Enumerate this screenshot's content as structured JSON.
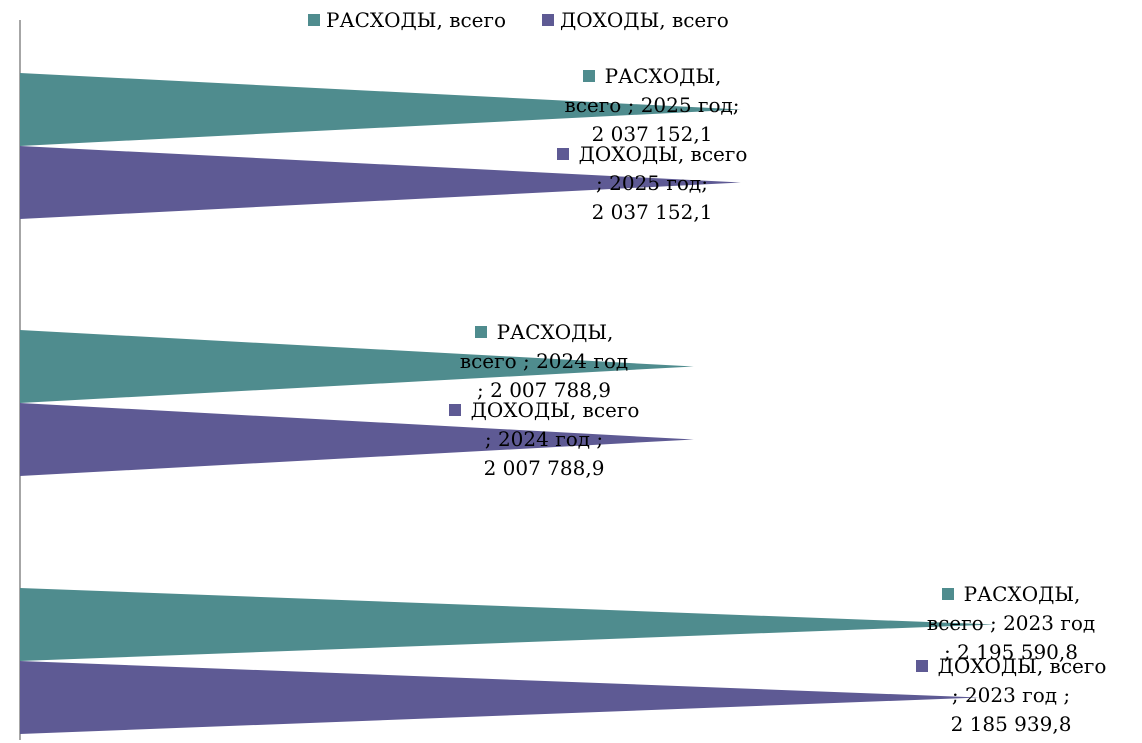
{
  "chart_data": {
    "type": "bar",
    "orientation": "horizontal",
    "bar_shape": "triangle",
    "categories": [
      "2023 год",
      "2024 год",
      "2025 год"
    ],
    "series": [
      {
        "name": "РАСХОДЫ, всего",
        "color": "#4F8C8E",
        "values": [
          2195590.8,
          2007788.9,
          2037152.1
        ]
      },
      {
        "name": "ДОХОДЫ, всего",
        "color": "#5E5A94",
        "values": [
          2185939.8,
          2007788.9,
          2037152.1
        ]
      }
    ],
    "legend": {
      "position": "top",
      "entries": [
        "РАСХОДЫ, всего",
        "ДОХОДЫ, всего"
      ]
    },
    "data_labels": [
      {
        "lines": [
          "РАСХОДЫ,",
          "всего ;  2025 год;",
          "2 037 152,1"
        ],
        "series": 0,
        "category": 2
      },
      {
        "lines": [
          "ДОХОДЫ, всего",
          ";  2025 год;",
          "2 037 152,1"
        ],
        "series": 1,
        "category": 2
      },
      {
        "lines": [
          "РАСХОДЫ,",
          "всего ;  2024 год",
          "; 2 007 788,9"
        ],
        "series": 0,
        "category": 1
      },
      {
        "lines": [
          "ДОХОДЫ, всего",
          ";  2024 год ;",
          "2 007 788,9"
        ],
        "series": 1,
        "category": 1
      },
      {
        "lines": [
          "РАСХОДЫ,",
          "всего ;  2023 год",
          "; 2 195 590,8"
        ],
        "series": 0,
        "category": 0
      },
      {
        "lines": [
          "ДОХОДЫ, всего",
          ";  2023 год  ;",
          "2 185 939,8"
        ],
        "series": 1,
        "category": 0
      }
    ],
    "grid": false,
    "axis_line_color": "#A6A6A6"
  }
}
